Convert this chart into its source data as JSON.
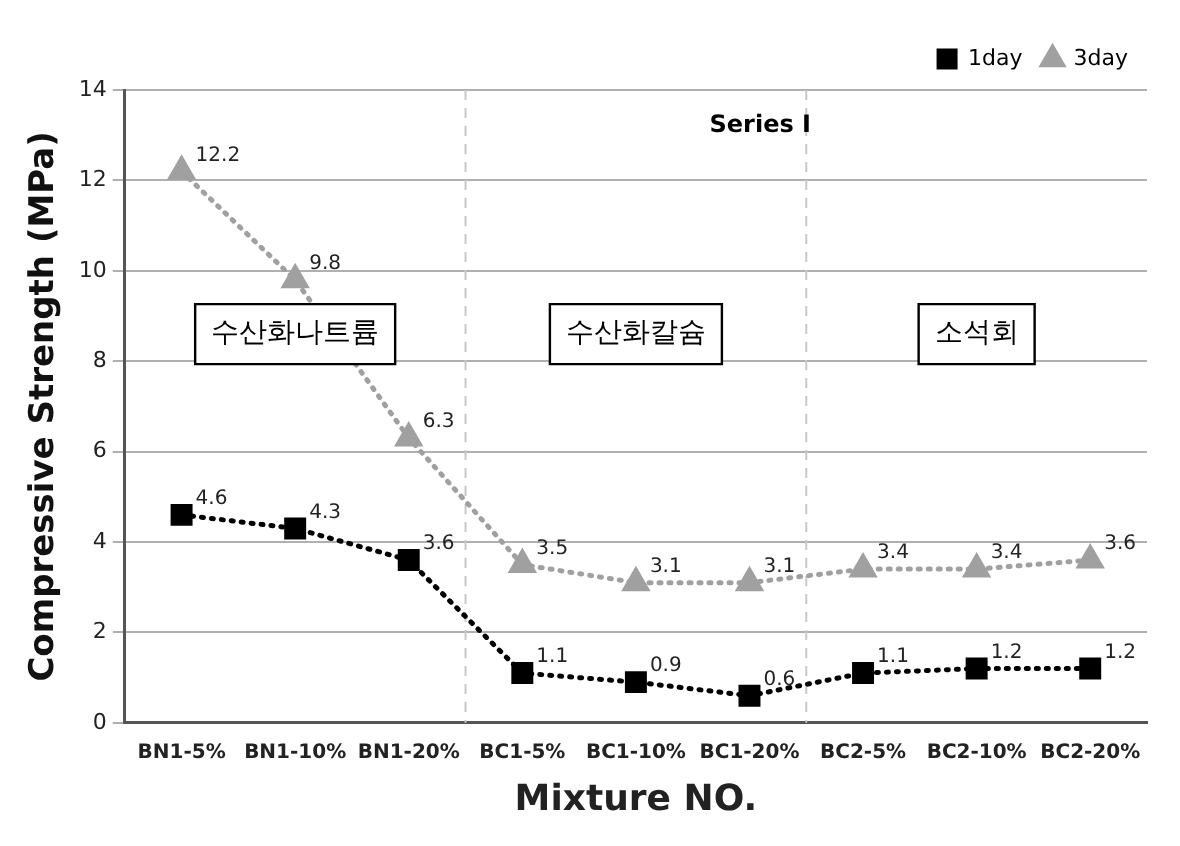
{
  "chart_data": {
    "type": "line",
    "xlabel": "Mixture NO.",
    "ylabel": "Compressive Strength (MPa)",
    "categories": [
      "BN1-5%",
      "BN1-10%",
      "BN1-20%",
      "BC1-5%",
      "BC1-10%",
      "BC1-20%",
      "BC2-5%",
      "BC2-10%",
      "BC2-20%"
    ],
    "series": [
      {
        "name": "1day",
        "color": "#000000",
        "marker": "square",
        "line_style": "dotted",
        "values": [
          4.6,
          4.3,
          3.6,
          1.1,
          0.9,
          0.6,
          1.1,
          1.2,
          1.2
        ]
      },
      {
        "name": "3day",
        "color": "#a0a0a0",
        "marker": "triangle",
        "line_style": "dotted",
        "values": [
          12.2,
          9.8,
          6.3,
          3.5,
          3.1,
          3.1,
          3.4,
          3.4,
          3.6
        ]
      }
    ],
    "ylim": [
      0,
      14
    ],
    "yticks": [
      0,
      2,
      4,
      6,
      8,
      10,
      12,
      14
    ],
    "grid": "y",
    "legend": "top right",
    "data_labels": true,
    "annotations": [
      "Series Ⅰ",
      "수산화나트륨",
      "수산화칼슘",
      "소석회"
    ]
  }
}
